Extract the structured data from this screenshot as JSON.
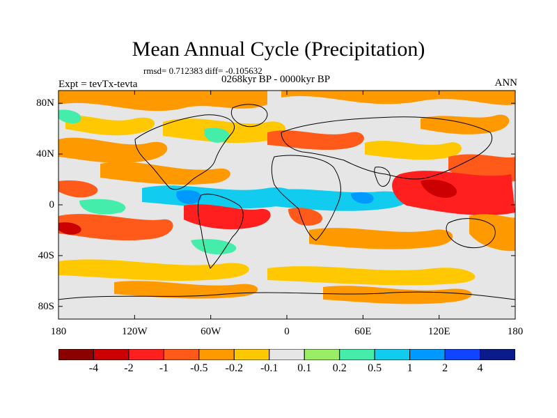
{
  "title": "Mean Annual Cycle (Precipitation)",
  "stats": "rmsd= 0.712383 diff= -0.105632",
  "period": "0268kyr BP - 0000kyr BP",
  "expt_label": "Expt = tevTx-tevta",
  "season": "ANN",
  "axes": {
    "y_ticks": [
      "80N",
      "40N",
      "0",
      "40S",
      "80S"
    ],
    "x_ticks": [
      "180",
      "120W",
      "60W",
      "0",
      "60E",
      "120E",
      "180"
    ]
  },
  "colorbar": {
    "colors": [
      "#8b0000",
      "#cc0000",
      "#ff1f1f",
      "#ff5a1a",
      "#ff9900",
      "#ffc800",
      "#e6e6e6",
      "#99ee66",
      "#44eeaa",
      "#11ccee",
      "#0099ff",
      "#1144ff",
      "#0b1b8a"
    ],
    "labels": [
      "-4",
      "-2",
      "-1",
      "-0.5",
      "-0.2",
      "-0.1",
      "0.1",
      "0.2",
      "0.5",
      "1",
      "2",
      "4"
    ]
  }
}
